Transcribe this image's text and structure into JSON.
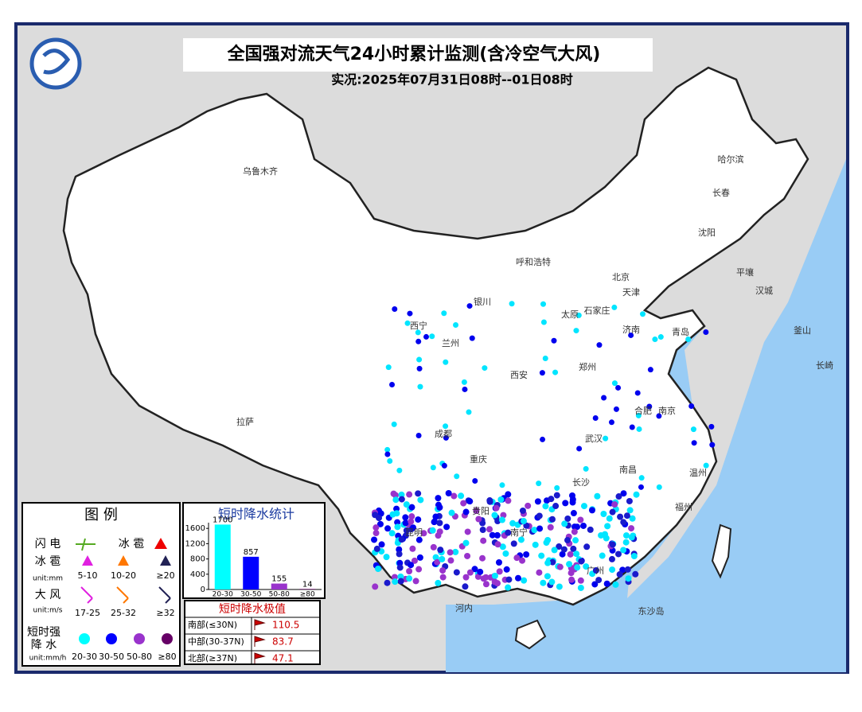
{
  "header": {
    "title": "全国强对流天气24小时累计监测(含冷空气大风)",
    "subtitle": "实况:2025年07月31日08时--01日08时"
  },
  "cities": [
    "乌鲁木齐",
    "哈尔滨",
    "长春",
    "沈阳",
    "呼和浩特",
    "北京",
    "天津",
    "银川",
    "太原",
    "石家庄",
    "济南",
    "青岛",
    "西宁",
    "兰州",
    "郑州",
    "西安",
    "合肥",
    "南京",
    "拉萨",
    "成都",
    "武汉",
    "重庆",
    "南昌",
    "长沙",
    "福州",
    "贵阳",
    "南宁",
    "昆明",
    "广州",
    "河内",
    "平壤",
    "汉城",
    "釜山",
    "长崎",
    "东沙岛",
    "温州"
  ],
  "legend": {
    "title": "图 例",
    "lightning": "闪 电",
    "hail_symbol": "冰 雹",
    "hail": {
      "label": "冰 雹",
      "unit": "unit:mm",
      "levels": [
        "5-10",
        "10-20",
        "≥20"
      ]
    },
    "wind": {
      "label": "大 风",
      "unit": "unit:m/s",
      "levels": [
        "17-25",
        "25-32",
        "≥32"
      ]
    },
    "rain": {
      "label_lines": [
        "短时强",
        "降 水"
      ],
      "unit": "unit:mm/h",
      "levels": [
        "20-30",
        "30-50",
        "50-80",
        "≥80"
      ]
    }
  },
  "chart_data": {
    "type": "bar",
    "title": "短时降水统计",
    "categories": [
      "20-30",
      "30-50",
      "50-80",
      "≥80"
    ],
    "values": [
      1700,
      857,
      155,
      14
    ],
    "colors": [
      "#00ffff",
      "#0000ff",
      "#9933cc",
      "#660066"
    ],
    "ylim": [
      0,
      1750
    ],
    "yticks": [
      0,
      400,
      800,
      1200,
      1600
    ]
  },
  "extremes": {
    "title": "短时降水极值",
    "rows": [
      {
        "region": "南部(≤30N)",
        "value": 110.5
      },
      {
        "region": "中部(30-37N)",
        "value": 83.7
      },
      {
        "region": "北部(≥37N)",
        "value": 47.1
      }
    ]
  }
}
